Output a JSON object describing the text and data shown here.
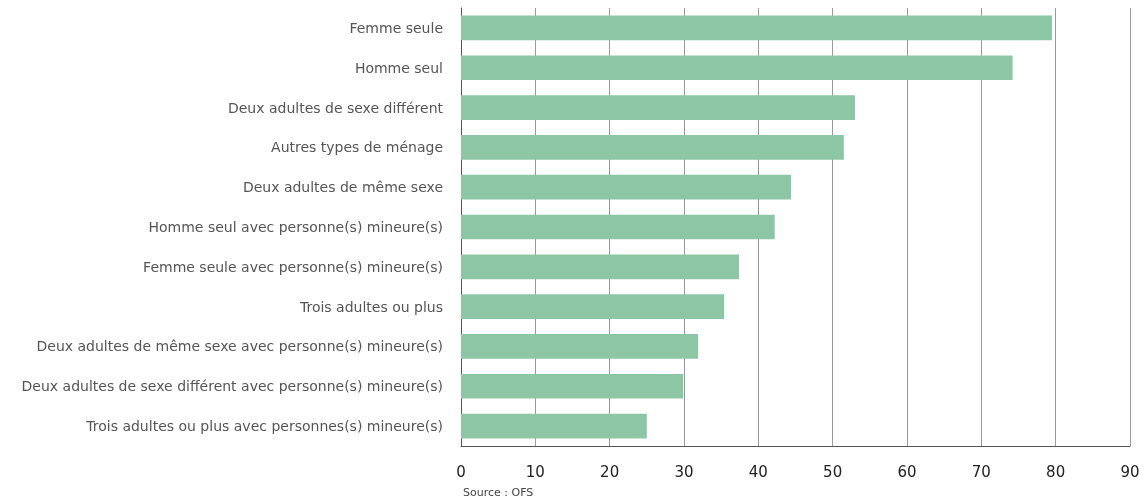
{
  "chart_data": {
    "type": "bar",
    "orientation": "horizontal",
    "categories": [
      "Femme seule",
      "Homme seul",
      "Deux adultes de sexe différent",
      "Autres types de ménage",
      "Deux adultes de même sexe",
      "Homme seul avec personne(s) mineure(s)",
      "Femme seule avec personne(s) mineure(s)",
      "Trois adultes ou plus",
      "Deux adultes de même sexe avec personne(s) mineure(s)",
      "Deux adultes de sexe différent avec personne(s) mineure(s)",
      "Trois adultes ou plus avec personnes(s) mineure(s)"
    ],
    "values": [
      79.5,
      74.2,
      53.0,
      51.5,
      44.4,
      42.2,
      37.4,
      35.4,
      31.9,
      29.9,
      25.0
    ],
    "color": "#8cc6a5",
    "xlim": [
      0,
      90
    ],
    "xticks": [
      0,
      10,
      20,
      30,
      40,
      50,
      60,
      70,
      80,
      90
    ],
    "grid": "x",
    "annotations": [
      "Source : OFS"
    ]
  }
}
